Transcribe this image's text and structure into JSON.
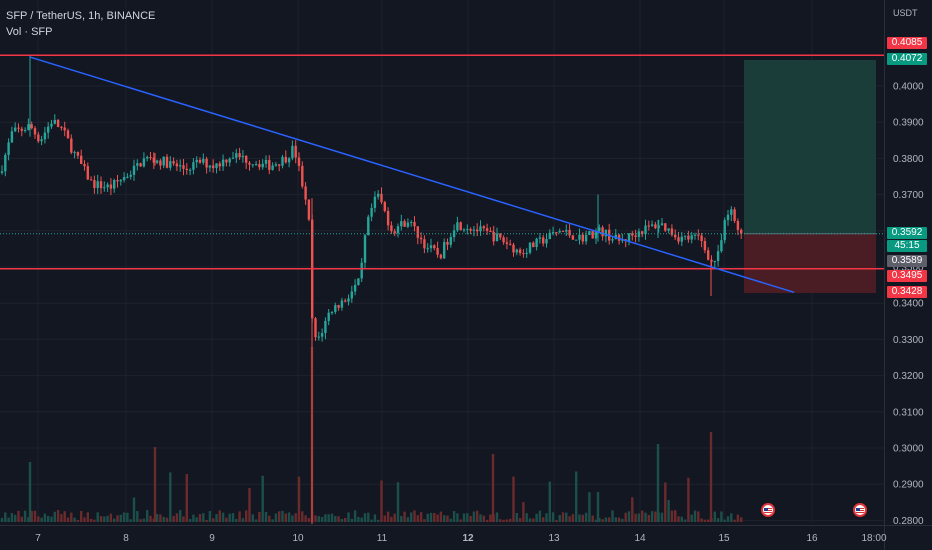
{
  "header": {
    "symbol_line": "SFP / TetherUS, 1h, BINANCE",
    "volume_line": "Vol · SFP"
  },
  "price_axis": {
    "currency": "USDT",
    "ticks": [
      "0.4000",
      "0.3900",
      "0.3800",
      "0.3700",
      "0.3600",
      "0.3500",
      "0.3400",
      "0.3300",
      "0.3200",
      "0.3100",
      "0.3000",
      "0.2900",
      "0.2800"
    ]
  },
  "time_axis": {
    "labels": [
      "7",
      "8",
      "9",
      "10",
      "11",
      "12",
      "13",
      "14",
      "15",
      "16",
      "18:00"
    ]
  },
  "price_tags": {
    "stop_level": "0.4085",
    "target": "0.4072",
    "last_price": "0.3592",
    "countdown": "45:15",
    "prev_close": "0.3589",
    "support": "0.3495",
    "stop_loss": "0.3428"
  },
  "colors": {
    "background": "#131722",
    "up": "#26a69a",
    "down": "#ef5350",
    "trendline": "#2962ff",
    "level_line": "#f23645",
    "profit_zone": "#1b3d3a",
    "loss_zone": "#4a1d24"
  },
  "chart_data": {
    "type": "candlestick",
    "title": "SFP / TetherUS, 1h, BINANCE",
    "ylim": [
      0.2775,
      0.412
    ],
    "x_categories": [
      "7",
      "8",
      "9",
      "10",
      "11",
      "12",
      "13",
      "14",
      "15",
      "16",
      "18:00"
    ],
    "horizontal_levels": [
      0.4085,
      0.3495
    ],
    "trendline": {
      "from": {
        "x": "6 Dec 22:00",
        "y": 0.408
      },
      "to": {
        "x": "15 Dec 18:00",
        "y": 0.343
      }
    },
    "long_position": {
      "entry": 0.3592,
      "target": 0.4072,
      "stop": 0.3428
    },
    "key_prices": [
      {
        "x": "7",
        "y": 0.388
      },
      {
        "x": "7",
        "y": 0.39
      },
      {
        "x": "8",
        "y": 0.372
      },
      {
        "x": "9",
        "y": 0.38
      },
      {
        "x": "10",
        "y": 0.383
      },
      {
        "x": "10 (crash)",
        "y": 0.279
      },
      {
        "x": "10",
        "y": 0.329
      },
      {
        "x": "11",
        "y": 0.37
      },
      {
        "x": "11",
        "y": 0.352
      },
      {
        "x": "12",
        "y": 0.362
      },
      {
        "x": "13",
        "y": 0.357
      },
      {
        "x": "14",
        "y": 0.361
      },
      {
        "x": "15",
        "y": 0.35
      },
      {
        "x": "15",
        "y": 0.366
      },
      {
        "x": "15",
        "y": 0.3592
      }
    ]
  }
}
